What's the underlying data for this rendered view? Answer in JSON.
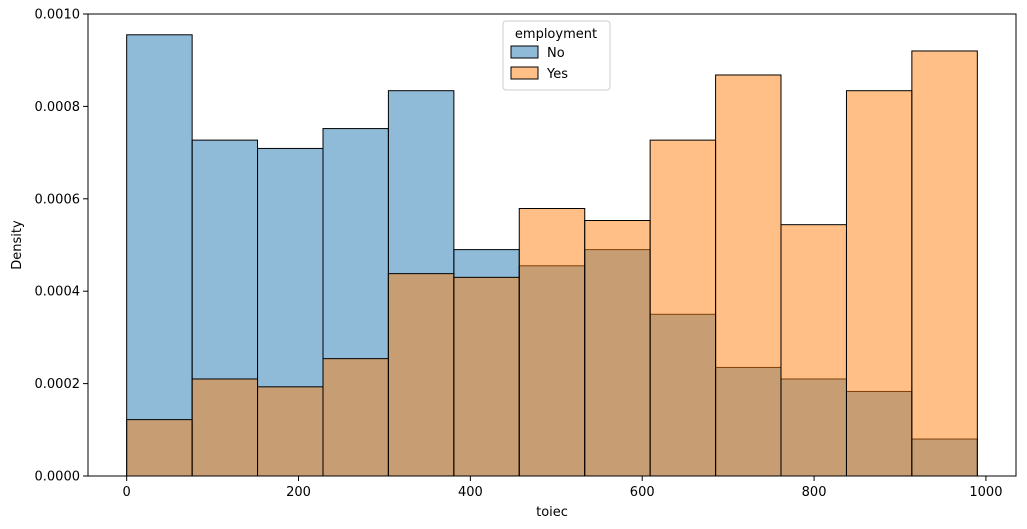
{
  "chart_data": {
    "type": "bar",
    "title": "",
    "xlabel": "toiec",
    "ylabel": "Density",
    "xlim": [
      -45,
      1035
    ],
    "ylim": [
      0,
      0.001
    ],
    "xticks": [
      0,
      200,
      400,
      600,
      800,
      1000
    ],
    "yticks": [
      0.0,
      0.0002,
      0.0004,
      0.0006,
      0.0008,
      0.001
    ],
    "xtick_labels": [
      "0",
      "200",
      "400",
      "600",
      "800",
      "1000"
    ],
    "ytick_labels": [
      "0.0000",
      "0.0002",
      "0.0004",
      "0.0006",
      "0.0008",
      "0.0010"
    ],
    "bin_edges": [
      0,
      76.2,
      152.3,
      228.5,
      304.6,
      380.8,
      456.9,
      533.1,
      609.2,
      685.4,
      761.5,
      837.7,
      913.8,
      990
    ],
    "series": [
      {
        "name": "No",
        "color": "#1f77b4",
        "values": [
          0.000955,
          0.000727,
          0.000709,
          0.000752,
          0.000834,
          0.00049,
          0.000455,
          0.00049,
          0.00035,
          0.000235,
          0.00021,
          0.000183,
          8e-05
        ]
      },
      {
        "name": "Yes",
        "color": "#ff7f0e",
        "values": [
          0.000122,
          0.00021,
          0.000193,
          0.000254,
          0.000438,
          0.00043,
          0.000579,
          0.000553,
          0.000727,
          0.000868,
          0.000544,
          0.000834,
          0.00092
        ]
      }
    ],
    "legend": {
      "title": "employment",
      "position": "top-center"
    },
    "grid": false
  }
}
